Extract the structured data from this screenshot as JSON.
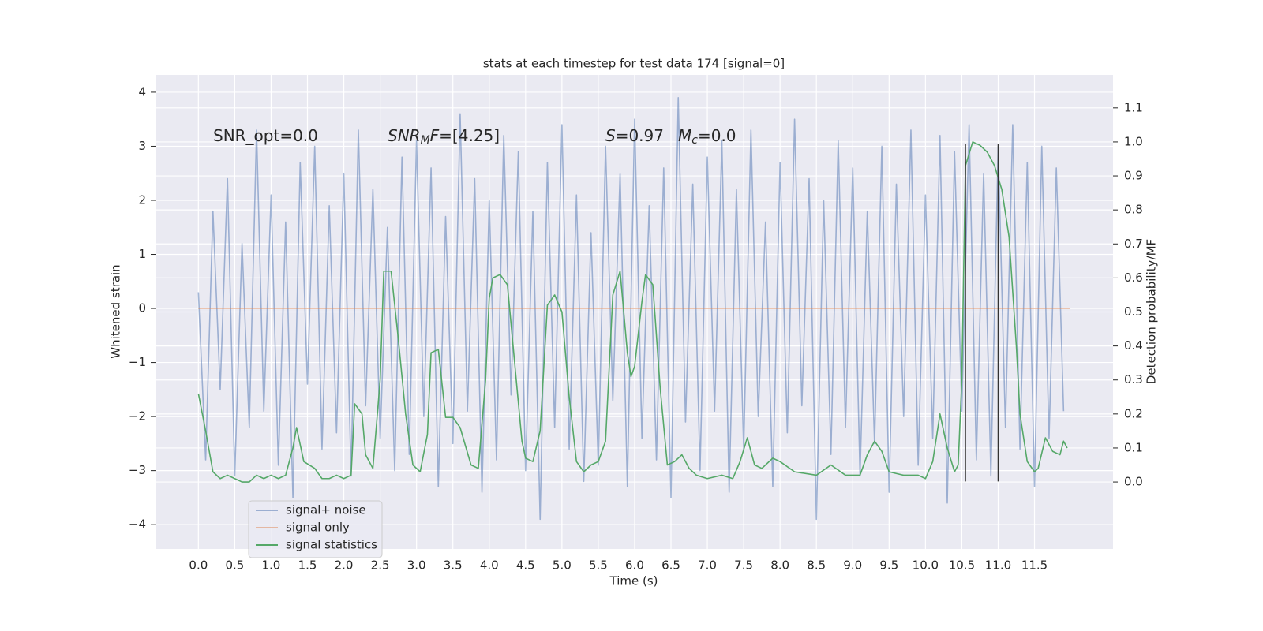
{
  "chart_data": {
    "type": "line",
    "title": "stats at each timestep for test data 174 [signal=0]",
    "xlabel": "Time (s)",
    "ylabel": "Whitened strain",
    "y2label": "Detection probability/MF",
    "xlim": [
      -0.59,
      12.58
    ],
    "ylim": [
      -4.45,
      4.32
    ],
    "y2lim": [
      -0.197,
      1.197
    ],
    "xticks": [
      {
        "value": 0,
        "label": "0.0"
      },
      {
        "value": 0.5,
        "label": "0.5"
      },
      {
        "value": 1,
        "label": "1.0"
      },
      {
        "value": 1.5,
        "label": "1.5"
      },
      {
        "value": 2,
        "label": "2.0"
      },
      {
        "value": 2.5,
        "label": "2.5"
      },
      {
        "value": 3,
        "label": "3.0"
      },
      {
        "value": 3.5,
        "label": "3.5"
      },
      {
        "value": 4,
        "label": "4.0"
      },
      {
        "value": 4.5,
        "label": "4.5"
      },
      {
        "value": 5,
        "label": "5.0"
      },
      {
        "value": 5.5,
        "label": "5.5"
      },
      {
        "value": 6,
        "label": "6.0"
      },
      {
        "value": 6.5,
        "label": "6.5"
      },
      {
        "value": 7,
        "label": "7.0"
      },
      {
        "value": 7.5,
        "label": "7.5"
      },
      {
        "value": 8,
        "label": "8.0"
      },
      {
        "value": 8.5,
        "label": "8.5"
      },
      {
        "value": 9,
        "label": "9.0"
      },
      {
        "value": 9.5,
        "label": "9.5"
      },
      {
        "value": 10,
        "label": "10.0"
      },
      {
        "value": 10.5,
        "label": "10.5"
      },
      {
        "value": 11,
        "label": "11.0"
      },
      {
        "value": 11.5,
        "label": "11.5"
      }
    ],
    "yticks": [
      {
        "value": -4,
        "label": "−4"
      },
      {
        "value": -3,
        "label": "−3"
      },
      {
        "value": -2,
        "label": "−2"
      },
      {
        "value": -1,
        "label": "−1"
      },
      0,
      1,
      2,
      3,
      4
    ],
    "y2ticks": [
      {
        "value": 0,
        "label": "0.0"
      },
      {
        "value": 0.1,
        "label": "0.1"
      },
      {
        "value": 0.2,
        "label": "0.2"
      },
      {
        "value": 0.3,
        "label": "0.3"
      },
      {
        "value": 0.4,
        "label": "0.4"
      },
      {
        "value": 0.5,
        "label": "0.5"
      },
      {
        "value": 0.6,
        "label": "0.6"
      },
      {
        "value": 0.7,
        "label": "0.7"
      },
      {
        "value": 0.8,
        "label": "0.8"
      },
      {
        "value": 0.9,
        "label": "0.9"
      },
      {
        "value": 1.0,
        "label": "1.0"
      },
      {
        "value": 1.1,
        "label": "1.1"
      }
    ],
    "grid": true,
    "legend": "lower left",
    "series": [
      {
        "name": "signal+ noise",
        "color": "#4c72b0",
        "opacity": 0.5,
        "x": [
          0,
          0.1,
          0.2,
          0.3,
          0.4,
          0.5,
          0.6,
          0.7,
          0.8,
          0.9,
          1,
          1.1,
          1.2,
          1.3,
          1.4,
          1.5,
          1.6,
          1.7,
          1.8,
          1.9,
          2,
          2.1,
          2.2,
          2.3,
          2.4,
          2.5,
          2.6,
          2.7,
          2.8,
          2.9,
          3,
          3.1,
          3.2,
          3.3,
          3.4,
          3.5,
          3.6,
          3.7,
          3.8,
          3.9,
          4,
          4.1,
          4.2,
          4.3,
          4.4,
          4.5,
          4.6,
          4.7,
          4.8,
          4.9,
          5,
          5.1,
          5.2,
          5.3,
          5.4,
          5.5,
          5.6,
          5.7,
          5.8,
          5.9,
          6,
          6.1,
          6.2,
          6.3,
          6.4,
          6.5,
          6.6,
          6.7,
          6.8,
          6.9,
          7,
          7.1,
          7.2,
          7.3,
          7.4,
          7.5,
          7.6,
          7.7,
          7.8,
          7.9,
          8,
          8.1,
          8.2,
          8.3,
          8.4,
          8.5,
          8.6,
          8.7,
          8.8,
          8.9,
          9,
          9.1,
          9.2,
          9.3,
          9.4,
          9.5,
          9.6,
          9.7,
          9.8,
          9.9,
          10,
          10.1,
          10.2,
          10.3,
          10.4,
          10.5,
          10.6,
          10.7,
          10.8,
          10.9,
          11,
          11.1,
          11.2,
          11.3,
          11.4,
          11.5,
          11.6,
          11.7,
          11.8,
          11.9
        ],
        "values": [
          0.3,
          -2.8,
          1.8,
          -1.5,
          2.4,
          -3.1,
          1.2,
          -2.2,
          3.3,
          -1.9,
          2.1,
          -2.9,
          1.6,
          -3.5,
          2.7,
          -1.4,
          3.0,
          -2.6,
          1.9,
          -2.3,
          2.5,
          -3.1,
          3.3,
          -1.8,
          2.2,
          -2.4,
          1.5,
          -3.0,
          2.8,
          -2.7,
          3.1,
          -2.0,
          2.6,
          -3.3,
          1.7,
          -2.5,
          3.6,
          -1.9,
          2.4,
          -3.4,
          2.0,
          -2.8,
          3.2,
          -1.6,
          2.9,
          -3.0,
          1.8,
          -3.9,
          2.7,
          -2.2,
          3.4,
          -2.6,
          2.1,
          -3.2,
          1.4,
          -2.9,
          3.0,
          -1.7,
          2.5,
          -3.3,
          3.5,
          -2.4,
          1.9,
          -2.8,
          2.6,
          -3.5,
          3.9,
          -2.1,
          2.3,
          -3.0,
          2.8,
          -1.9,
          3.1,
          -3.4,
          2.2,
          -2.6,
          3.3,
          -2.0,
          1.6,
          -3.3,
          2.7,
          -2.3,
          3.5,
          -1.8,
          2.4,
          -3.9,
          2.0,
          -2.7,
          3.1,
          -2.2,
          2.6,
          -3.1,
          1.8,
          -2.5,
          3.0,
          -3.4,
          2.3,
          -2.0,
          3.3,
          -2.9,
          2.1,
          -2.4,
          3.2,
          -3.6,
          2.9,
          -1.9,
          3.4,
          -2.8,
          2.5,
          -3.1,
          3.0,
          -2.2,
          3.4,
          -2.6,
          2.7,
          -3.3,
          3.0,
          -2.4,
          2.6,
          -1.9
        ]
      },
      {
        "name": "signal only",
        "color": "#dd8452",
        "opacity": 0.5,
        "x": [
          0,
          11.99
        ],
        "values": [
          0,
          0
        ]
      },
      {
        "name": "signal statistics",
        "color": "#55a868",
        "opacity": 1,
        "axis": "y2",
        "x": [
          0,
          0.1,
          0.2,
          0.3,
          0.4,
          0.5,
          0.6,
          0.7,
          0.8,
          0.9,
          1.0,
          1.1,
          1.2,
          1.3,
          1.35,
          1.45,
          1.6,
          1.7,
          1.8,
          1.9,
          2.0,
          2.1,
          2.15,
          2.25,
          2.3,
          2.4,
          2.5,
          2.55,
          2.65,
          2.75,
          2.85,
          2.95,
          3.05,
          3.15,
          3.2,
          3.3,
          3.4,
          3.5,
          3.6,
          3.75,
          3.85,
          3.95,
          4.0,
          4.05,
          4.15,
          4.25,
          4.35,
          4.45,
          4.5,
          4.6,
          4.7,
          4.8,
          4.9,
          5.0,
          5.1,
          5.2,
          5.3,
          5.4,
          5.5,
          5.6,
          5.7,
          5.8,
          5.9,
          5.95,
          6.0,
          6.1,
          6.15,
          6.25,
          6.35,
          6.45,
          6.55,
          6.65,
          6.75,
          6.85,
          7.0,
          7.2,
          7.35,
          7.45,
          7.55,
          7.65,
          7.75,
          7.9,
          8.0,
          8.2,
          8.5,
          8.7,
          8.9,
          9.1,
          9.2,
          9.3,
          9.4,
          9.5,
          9.7,
          9.9,
          10.0,
          10.1,
          10.2,
          10.3,
          10.4,
          10.45,
          10.5,
          10.55,
          10.65,
          10.75,
          10.85,
          10.95,
          11.05,
          11.15,
          11.25,
          11.3,
          11.4,
          11.5,
          11.55,
          11.65,
          11.75,
          11.85,
          11.9,
          11.95
        ],
        "values": [
          0.26,
          0.15,
          0.03,
          0.01,
          0.02,
          0.01,
          0.0,
          0.0,
          0.02,
          0.01,
          0.02,
          0.01,
          0.02,
          0.1,
          0.16,
          0.06,
          0.04,
          0.01,
          0.01,
          0.02,
          0.01,
          0.02,
          0.23,
          0.2,
          0.08,
          0.04,
          0.3,
          0.62,
          0.62,
          0.42,
          0.2,
          0.05,
          0.03,
          0.14,
          0.38,
          0.39,
          0.19,
          0.19,
          0.16,
          0.05,
          0.04,
          0.3,
          0.54,
          0.6,
          0.61,
          0.58,
          0.35,
          0.12,
          0.07,
          0.06,
          0.15,
          0.52,
          0.55,
          0.5,
          0.25,
          0.06,
          0.03,
          0.05,
          0.06,
          0.12,
          0.55,
          0.62,
          0.38,
          0.31,
          0.34,
          0.53,
          0.61,
          0.58,
          0.28,
          0.05,
          0.06,
          0.08,
          0.04,
          0.02,
          0.01,
          0.02,
          0.01,
          0.06,
          0.13,
          0.05,
          0.04,
          0.07,
          0.06,
          0.03,
          0.02,
          0.05,
          0.02,
          0.02,
          0.08,
          0.12,
          0.09,
          0.03,
          0.02,
          0.02,
          0.01,
          0.06,
          0.2,
          0.1,
          0.03,
          0.05,
          0.3,
          0.93,
          1.0,
          0.99,
          0.97,
          0.93,
          0.86,
          0.72,
          0.4,
          0.2,
          0.06,
          0.03,
          0.04,
          0.13,
          0.09,
          0.08,
          0.12,
          0.1
        ]
      }
    ],
    "vlines": {
      "x": [
        10.55,
        11.0
      ],
      "ymin": -3.2,
      "ymax": 3.05,
      "color": "#333333"
    },
    "annotations": [
      [
        {
          "text": "SNR_opt=0.0"
        }
      ],
      [
        {
          "text": "SNR",
          "italic": true
        },
        {
          "text": "M",
          "italic": true,
          "sub": true
        },
        {
          "text": "F",
          "italic": true
        },
        {
          "text": "=[4.25]"
        }
      ],
      [
        {
          "text": "S",
          "italic": true
        },
        {
          "text": "=0.97"
        }
      ],
      [
        {
          "text": "M",
          "italic": true
        },
        {
          "text": "c",
          "italic": true,
          "sub": true
        },
        {
          "text": "=0.0"
        }
      ]
    ]
  }
}
